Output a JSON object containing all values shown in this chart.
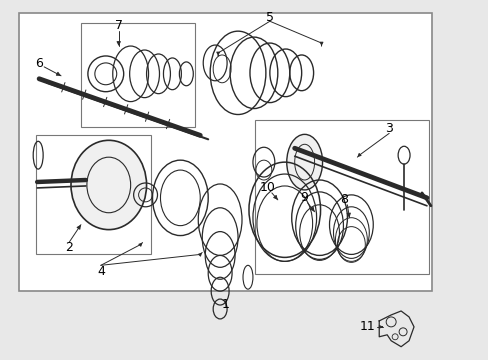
{
  "bg_color": "#e8e8e8",
  "fig_w": 4.89,
  "fig_h": 3.6,
  "dpi": 100,
  "line_color": "#2a2a2a",
  "box_color": "#aaaaaa",
  "white": "#ffffff",
  "label_fs": 9
}
